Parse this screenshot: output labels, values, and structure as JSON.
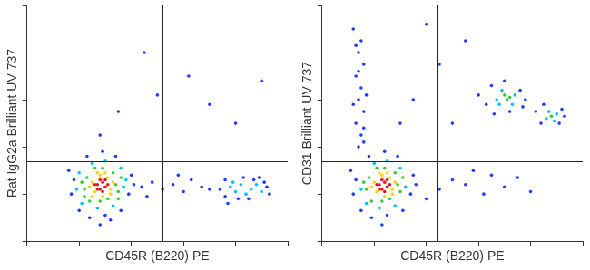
{
  "chart_data": [
    {
      "type": "scatter",
      "x_label": "CD45R (B220) PE",
      "y_label": "Rat IgG2a Brilliant UV 737",
      "xlim": [
        0,
        100
      ],
      "ylim": [
        0,
        100
      ],
      "xticks": [
        0,
        20,
        40,
        60,
        80,
        100
      ],
      "yticks": [
        0,
        20,
        40,
        60,
        80,
        100
      ],
      "tick_labels": false,
      "grid": false,
      "gates": {
        "x": 52,
        "y": 34
      },
      "series": [
        {
          "color": "#e31a1c",
          "x": [
            27,
            28,
            29,
            30,
            28,
            31,
            29,
            27,
            30,
            26
          ],
          "values": [
            24,
            22,
            25,
            23,
            26,
            24,
            21,
            22,
            26,
            24
          ]
        },
        {
          "color": "#ffd400",
          "x": [
            25,
            32,
            28,
            31,
            26,
            33,
            29,
            24,
            32,
            27,
            30,
            25
          ],
          "values": [
            25,
            22,
            28,
            27,
            21,
            25,
            19,
            23,
            20,
            29,
            29,
            19
          ]
        },
        {
          "color": "#33cc33",
          "x": [
            23,
            34,
            22,
            35,
            29,
            26,
            33,
            31,
            24,
            28,
            21,
            36,
            35,
            22
          ],
          "values": [
            27,
            24,
            22,
            21,
            31,
            31,
            29,
            18,
            17,
            17,
            25,
            27,
            18,
            19
          ]
        },
        {
          "color": "#00bfff",
          "x": [
            20,
            37,
            30,
            25,
            19,
            38,
            27,
            33,
            21,
            36,
            78,
            80,
            82,
            86,
            88,
            90,
            84,
            79
          ],
          "values": [
            29,
            23,
            34,
            33,
            22,
            26,
            14,
            15,
            16,
            31,
            23,
            21,
            24,
            22,
            24,
            21,
            20,
            25
          ]
        },
        {
          "color": "#1f3cff",
          "x": [
            18,
            17,
            39,
            40,
            23,
            34,
            29,
            20,
            30,
            36,
            24,
            16,
            41,
            28,
            32,
            44,
            48,
            52,
            56,
            60,
            63,
            67,
            70,
            46,
            58,
            74,
            76,
            76,
            83,
            85,
            89,
            92,
            93,
            81,
            87,
            91,
            77,
            35,
            50,
            62,
            45,
            70,
            28,
            80,
            90
          ],
          "values": [
            26,
            20,
            20,
            28,
            36,
            36,
            38,
            13,
            11,
            13,
            10,
            30,
            24,
            7,
            9,
            23,
            25,
            22,
            24,
            21,
            26,
            23,
            22,
            19,
            28,
            22,
            26,
            19,
            27,
            18,
            27,
            23,
            20,
            18,
            26,
            25,
            16,
            55,
            62,
            70,
            80,
            58,
            45,
            50,
            68
          ]
        }
      ]
    },
    {
      "type": "scatter",
      "x_label": "CD45R (B220) PE",
      "y_label": "CD31 Brilliant UV 737",
      "xlim": [
        0,
        100
      ],
      "ylim": [
        0,
        100
      ],
      "xticks": [
        0,
        20,
        40,
        60,
        80,
        100
      ],
      "yticks": [
        0,
        20,
        40,
        60,
        80,
        100
      ],
      "tick_labels": false,
      "grid": false,
      "gates": {
        "x": 44,
        "y": 34
      },
      "series": [
        {
          "color": "#e31a1c",
          "x": [
            22,
            23,
            24,
            25,
            23,
            26,
            24,
            22,
            25,
            21
          ],
          "values": [
            24,
            22,
            25,
            23,
            26,
            24,
            21,
            22,
            26,
            24
          ]
        },
        {
          "color": "#ffd400",
          "x": [
            20,
            27,
            23,
            26,
            21,
            28,
            24,
            19,
            27,
            22,
            25
          ],
          "values": [
            25,
            22,
            28,
            27,
            21,
            25,
            19,
            23,
            20,
            29,
            29
          ]
        },
        {
          "color": "#33cc33",
          "x": [
            18,
            29,
            17,
            30,
            24,
            21,
            28,
            26,
            19,
            23,
            16,
            31,
            70,
            71,
            72,
            88
          ],
          "values": [
            27,
            24,
            22,
            21,
            31,
            31,
            29,
            18,
            17,
            17,
            25,
            27,
            62,
            60,
            61,
            53
          ]
        },
        {
          "color": "#00bfff",
          "x": [
            15,
            32,
            25,
            20,
            30,
            22,
            28,
            17,
            67,
            69,
            73,
            74,
            68,
            87,
            89,
            86,
            90
          ],
          "values": [
            22,
            23,
            34,
            33,
            31,
            14,
            15,
            16,
            60,
            64,
            58,
            62,
            58,
            55,
            51,
            52,
            54
          ]
        },
        {
          "color": "#1f3cff",
          "x": [
            13,
            12,
            34,
            35,
            18,
            29,
            24,
            15,
            25,
            31,
            19,
            11,
            36,
            23,
            14,
            15,
            13,
            16,
            14,
            15,
            13,
            16,
            14,
            15,
            12,
            16,
            17,
            12,
            14,
            16,
            13,
            63,
            65,
            70,
            76,
            77,
            66,
            72,
            60,
            84,
            92,
            85,
            91,
            82,
            93,
            78,
            45,
            50,
            55,
            62,
            70,
            75,
            80,
            40,
            58,
            65,
            35,
            45,
            55,
            30,
            50,
            40
          ],
          "values": [
            26,
            20,
            20,
            28,
            36,
            36,
            38,
            13,
            11,
            13,
            10,
            30,
            24,
            7,
            40,
            45,
            50,
            55,
            60,
            65,
            70,
            75,
            80,
            85,
            90,
            48,
            62,
            58,
            72,
            42,
            83,
            58,
            66,
            68,
            64,
            57,
            54,
            55,
            62,
            50,
            56,
            58,
            50,
            55,
            53,
            60,
            22,
            26,
            24,
            20,
            23,
            27,
            21,
            18,
            30,
            28,
            60,
            75,
            85,
            50,
            50,
            92
          ]
        }
      ]
    }
  ]
}
